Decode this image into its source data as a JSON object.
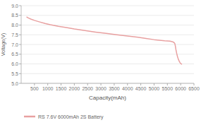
{
  "chart_data": {
    "type": "line",
    "xlabel": "Capacity(mAh)",
    "ylabel": "Voltage(V)",
    "x": [
      200,
      280,
      380,
      500,
      700,
      900,
      1100,
      1400,
      1700,
      2000,
      2400,
      2800,
      3200,
      3600,
      4000,
      4400,
      4700,
      5000,
      5200,
      5400,
      5600,
      5700,
      5750,
      5780,
      5800,
      5820,
      5850,
      5880,
      5910,
      5940,
      5970,
      6000,
      6050
    ],
    "series": [
      {
        "name": "RS 7.6V 6000mAh 2S Battery",
        "color": "#e8a0a0",
        "values": [
          8.42,
          8.36,
          8.3,
          8.24,
          8.16,
          8.08,
          8.02,
          7.94,
          7.87,
          7.8,
          7.72,
          7.64,
          7.57,
          7.5,
          7.44,
          7.37,
          7.31,
          7.25,
          7.22,
          7.19,
          7.17,
          7.14,
          7.1,
          7.05,
          6.92,
          6.75,
          6.55,
          6.38,
          6.25,
          6.16,
          6.08,
          6.02,
          5.98
        ]
      }
    ],
    "xlim": [
      0,
      6500
    ],
    "ylim": [
      5.0,
      9.0
    ],
    "xticks": [
      500,
      1000,
      1500,
      2000,
      2500,
      3000,
      3500,
      4000,
      4500,
      5000,
      5500,
      6000,
      6500
    ],
    "yticks": [
      {
        "value": 5.0,
        "label": "5.0"
      },
      5.5,
      {
        "value": 6.0,
        "label": "6.0"
      },
      6.5,
      {
        "value": 7.0,
        "label": "7.0"
      },
      7.5,
      {
        "value": 8.0,
        "label": "8.0"
      },
      8.5,
      {
        "value": 9.0,
        "label": "9.0"
      }
    ],
    "grid": true,
    "legend": "bottom left"
  }
}
